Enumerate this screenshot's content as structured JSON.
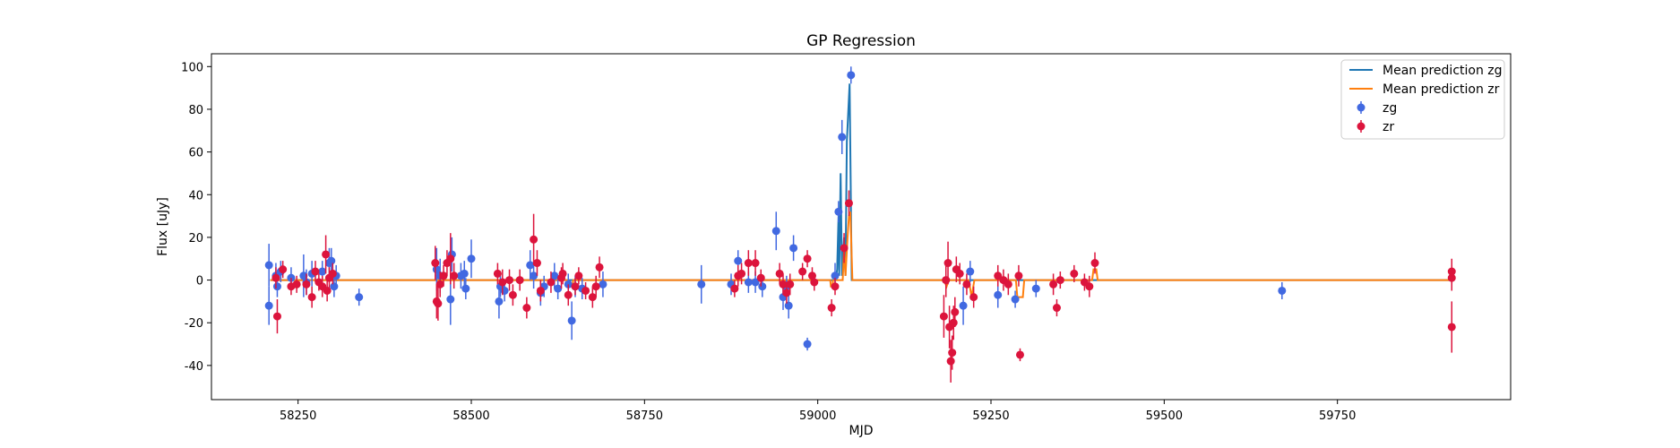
{
  "chart_data": {
    "type": "scatter",
    "title": "GP Regression",
    "xlabel": "MJD",
    "ylabel": "Flux [uJy]",
    "xlim": [
      58125,
      60000
    ],
    "ylim": [
      -56,
      106
    ],
    "xticks": [
      58250,
      58500,
      58750,
      59000,
      59250,
      59500,
      59750
    ],
    "yticks": [
      -40,
      -20,
      0,
      20,
      40,
      60,
      80,
      100
    ],
    "grid": false,
    "legend_position": "top-right",
    "legend": {
      "line_zg": "Mean prediction zg",
      "line_zr": "Mean prediction zr",
      "points_zg": "zg",
      "points_zr": "zr"
    },
    "colors": {
      "line_zg": "#1f77b4",
      "line_zr": "#ff7f0e",
      "points_zg": "#4169e1",
      "points_zr": "#dc143c"
    },
    "series": [
      {
        "name": "zg",
        "kind": "errorbar",
        "points": [
          [
            58208,
            7,
            10
          ],
          [
            58208,
            -12,
            9
          ],
          [
            58218,
            2,
            6
          ],
          [
            58220,
            -3,
            5
          ],
          [
            58225,
            4,
            5
          ],
          [
            58240,
            1,
            5
          ],
          [
            58258,
            2,
            10
          ],
          [
            58262,
            -1,
            6
          ],
          [
            58270,
            3,
            6
          ],
          [
            58285,
            4,
            5
          ],
          [
            58295,
            8,
            7
          ],
          [
            58298,
            9,
            6
          ],
          [
            58302,
            -3,
            5
          ],
          [
            58305,
            2,
            5
          ],
          [
            58338,
            -8,
            4
          ],
          [
            58450,
            5,
            10
          ],
          [
            58455,
            2,
            8
          ],
          [
            58470,
            -9,
            12
          ],
          [
            58472,
            12,
            8
          ],
          [
            58485,
            2,
            6
          ],
          [
            58490,
            3,
            6
          ],
          [
            58492,
            -4,
            5
          ],
          [
            58500,
            10,
            9
          ],
          [
            58540,
            -10,
            8
          ],
          [
            58542,
            -3,
            5
          ],
          [
            58548,
            -5,
            5
          ],
          [
            58585,
            7,
            7
          ],
          [
            58590,
            2,
            6
          ],
          [
            58600,
            -6,
            6
          ],
          [
            58605,
            -3,
            5
          ],
          [
            58620,
            2,
            6
          ],
          [
            58625,
            -4,
            5
          ],
          [
            58640,
            -2,
            5
          ],
          [
            58645,
            -19,
            9
          ],
          [
            58650,
            -3,
            5
          ],
          [
            58660,
            -4,
            5
          ],
          [
            58690,
            -2,
            6
          ],
          [
            58832,
            -2,
            9
          ],
          [
            58875,
            -2,
            5
          ],
          [
            58885,
            9,
            5
          ],
          [
            58900,
            -1,
            5
          ],
          [
            58910,
            -1,
            5
          ],
          [
            58920,
            -3,
            5
          ],
          [
            58940,
            23,
            9
          ],
          [
            58950,
            -8,
            6
          ],
          [
            58955,
            -3,
            5
          ],
          [
            58958,
            -12,
            6
          ],
          [
            58965,
            15,
            6
          ],
          [
            58985,
            -30,
            3
          ],
          [
            59025,
            2,
            6
          ],
          [
            59030,
            32,
            5
          ],
          [
            59035,
            67,
            8
          ],
          [
            59048,
            96,
            4
          ],
          [
            59210,
            -12,
            9
          ],
          [
            59220,
            4,
            5
          ],
          [
            59260,
            -7,
            6
          ],
          [
            59285,
            -9,
            4
          ],
          [
            59315,
            -4,
            4
          ],
          [
            59670,
            -5,
            4
          ]
        ]
      },
      {
        "name": "zr",
        "kind": "errorbar",
        "points": [
          [
            58220,
            -17,
            8
          ],
          [
            58218,
            1,
            5
          ],
          [
            58228,
            5,
            4
          ],
          [
            58240,
            -3,
            4
          ],
          [
            58248,
            -2,
            4
          ],
          [
            58262,
            -2,
            5
          ],
          [
            58270,
            -8,
            5
          ],
          [
            58275,
            4,
            5
          ],
          [
            58280,
            -1,
            4
          ],
          [
            58285,
            -3,
            5
          ],
          [
            58290,
            12,
            9
          ],
          [
            58292,
            -5,
            5
          ],
          [
            58295,
            1,
            5
          ],
          [
            58300,
            3,
            5
          ],
          [
            58448,
            8,
            8
          ],
          [
            58450,
            -10,
            8
          ],
          [
            58452,
            -11,
            8
          ],
          [
            58455,
            -2,
            6
          ],
          [
            58460,
            2,
            5
          ],
          [
            58465,
            8,
            6
          ],
          [
            58470,
            10,
            12
          ],
          [
            58475,
            2,
            6
          ],
          [
            58538,
            3,
            5
          ],
          [
            58545,
            -1,
            6
          ],
          [
            58555,
            0,
            5
          ],
          [
            58560,
            -7,
            5
          ],
          [
            58570,
            0,
            5
          ],
          [
            58580,
            -13,
            5
          ],
          [
            58590,
            19,
            12
          ],
          [
            58595,
            8,
            6
          ],
          [
            58600,
            -5,
            5
          ],
          [
            58615,
            -1,
            5
          ],
          [
            58630,
            1,
            5
          ],
          [
            58632,
            3,
            5
          ],
          [
            58640,
            -7,
            5
          ],
          [
            58650,
            -3,
            4
          ],
          [
            58655,
            2,
            4
          ],
          [
            58665,
            -5,
            4
          ],
          [
            58675,
            -8,
            5
          ],
          [
            58680,
            -3,
            5
          ],
          [
            58685,
            6,
            5
          ],
          [
            58880,
            -4,
            4
          ],
          [
            58885,
            2,
            5
          ],
          [
            58890,
            3,
            5
          ],
          [
            58900,
            8,
            6
          ],
          [
            58910,
            8,
            6
          ],
          [
            58918,
            1,
            4
          ],
          [
            58945,
            3,
            5
          ],
          [
            58950,
            -2,
            5
          ],
          [
            58955,
            -6,
            5
          ],
          [
            58960,
            -2,
            5
          ],
          [
            58978,
            4,
            4
          ],
          [
            58985,
            10,
            4
          ],
          [
            58992,
            2,
            4
          ],
          [
            58995,
            -1,
            4
          ],
          [
            59020,
            -13,
            4
          ],
          [
            59025,
            -3,
            4
          ],
          [
            59038,
            15,
            7
          ],
          [
            59045,
            36,
            6
          ],
          [
            59182,
            -17,
            10
          ],
          [
            59185,
            0,
            8
          ],
          [
            59188,
            8,
            10
          ],
          [
            59190,
            -22,
            10
          ],
          [
            59192,
            -38,
            10
          ],
          [
            59194,
            -34,
            8
          ],
          [
            59196,
            -20,
            8
          ],
          [
            59198,
            -15,
            7
          ],
          [
            59200,
            5,
            6
          ],
          [
            59205,
            3,
            5
          ],
          [
            59215,
            -2,
            5
          ],
          [
            59225,
            -8,
            5
          ],
          [
            59260,
            2,
            5
          ],
          [
            59268,
            0,
            5
          ],
          [
            59275,
            -2,
            5
          ],
          [
            59290,
            2,
            5
          ],
          [
            59292,
            -35,
            3
          ],
          [
            59340,
            -2,
            5
          ],
          [
            59345,
            -13,
            4
          ],
          [
            59350,
            0,
            4
          ],
          [
            59370,
            3,
            4
          ],
          [
            59385,
            -1,
            4
          ],
          [
            59392,
            -3,
            5
          ],
          [
            59400,
            8,
            5
          ],
          [
            59915,
            -22,
            12
          ],
          [
            59915,
            1,
            6
          ],
          [
            59915,
            4,
            6
          ]
        ]
      },
      {
        "name": "Mean prediction zg",
        "kind": "line",
        "points": [
          [
            58210,
            0
          ],
          [
            59026,
            0
          ],
          [
            59028,
            5
          ],
          [
            59030,
            30
          ],
          [
            59031,
            2
          ],
          [
            59033,
            50
          ],
          [
            59035,
            2
          ],
          [
            59038,
            20
          ],
          [
            59040,
            2
          ],
          [
            59042,
            65
          ],
          [
            59046,
            92
          ],
          [
            59049,
            0
          ],
          [
            59915,
            0
          ]
        ]
      },
      {
        "name": "Mean prediction zr",
        "kind": "line",
        "points": [
          [
            58210,
            0
          ],
          [
            58640,
            0
          ],
          [
            58641,
            -3
          ],
          [
            58646,
            -3
          ],
          [
            58647,
            0
          ],
          [
            59018,
            0
          ],
          [
            59019,
            -3
          ],
          [
            59021,
            -3
          ],
          [
            59022,
            0
          ],
          [
            59036,
            0
          ],
          [
            59038,
            15
          ],
          [
            59040,
            2
          ],
          [
            59043,
            20
          ],
          [
            59045,
            30
          ],
          [
            59047,
            32
          ],
          [
            59050,
            0
          ],
          [
            59182,
            0
          ],
          [
            59186,
            -3
          ],
          [
            59189,
            0
          ],
          [
            59218,
            0
          ],
          [
            59222,
            -8
          ],
          [
            59226,
            0
          ],
          [
            59286,
            0
          ],
          [
            59288,
            -8
          ],
          [
            59296,
            -8
          ],
          [
            59298,
            0
          ],
          [
            59396,
            0
          ],
          [
            59398,
            5
          ],
          [
            59402,
            5
          ],
          [
            59404,
            0
          ],
          [
            59915,
            0
          ]
        ]
      }
    ]
  }
}
